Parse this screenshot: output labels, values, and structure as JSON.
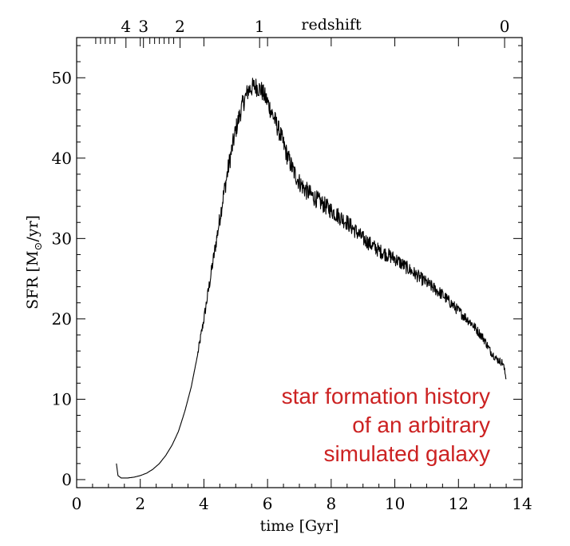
{
  "chart_data": {
    "type": "line",
    "title": "",
    "xlabel": "time [Gyr]",
    "ylabel_main": "SFR [M",
    "ylabel_sub": "⊙",
    "ylabel_tail": "/yr]",
    "top_axis_label": "redshift",
    "xlim": [
      0,
      14
    ],
    "ylim": [
      -1,
      55
    ],
    "x_ticks": [
      0,
      2,
      4,
      6,
      8,
      10,
      12,
      14
    ],
    "y_ticks": [
      0,
      10,
      20,
      30,
      40,
      50
    ],
    "x_minor_step": 0.5,
    "y_minor_step": 2,
    "redshift_ticks": [
      {
        "label": "4",
        "time": 1.55
      },
      {
        "label": "3",
        "time": 2.1
      },
      {
        "label": "2",
        "time": 3.25
      },
      {
        "label": "1",
        "time": 5.75
      },
      {
        "label": "0",
        "time": 13.45
      }
    ],
    "redshift_minor_times": [
      0.6,
      0.75,
      0.9,
      1.05,
      1.2,
      2.3,
      2.45,
      2.6,
      2.75,
      2.9,
      3.05
    ],
    "grid": false,
    "series": [
      {
        "color": "#000000",
        "x": [
          1.25,
          1.3,
          1.4,
          1.6,
          1.8,
          2.0,
          2.2,
          2.4,
          2.6,
          2.8,
          3.0,
          3.2,
          3.4,
          3.6,
          3.8,
          4.0,
          4.2,
          4.4,
          4.6,
          4.8,
          5.0,
          5.2,
          5.4,
          5.6,
          5.8,
          6.0,
          6.2,
          6.4,
          6.6,
          6.8,
          7.0,
          7.2,
          7.5,
          8.0,
          8.5,
          9.0,
          9.5,
          10.0,
          10.5,
          11.0,
          11.5,
          12.0,
          12.4,
          12.8,
          13.0,
          13.2,
          13.4,
          13.5
        ],
        "y": [
          2.0,
          0.5,
          0.2,
          0.2,
          0.3,
          0.5,
          0.8,
          1.3,
          2.0,
          3.0,
          4.3,
          6.0,
          8.5,
          11.5,
          15.5,
          20.0,
          25.0,
          30.0,
          35.0,
          39.5,
          43.5,
          46.5,
          48.5,
          49.0,
          48.5,
          47.0,
          45.0,
          43.0,
          40.5,
          38.5,
          37.0,
          36.0,
          35.0,
          33.5,
          32.0,
          30.0,
          28.5,
          27.5,
          26.0,
          24.5,
          23.0,
          21.0,
          19.5,
          17.5,
          16.0,
          15.0,
          14.5,
          12.5
        ],
        "noise_amplitude": 0.8
      }
    ],
    "annotation": [
      "star formation history",
      "of an arbitrary",
      "simulated galaxy"
    ],
    "annotation_color": "#cc2222"
  }
}
